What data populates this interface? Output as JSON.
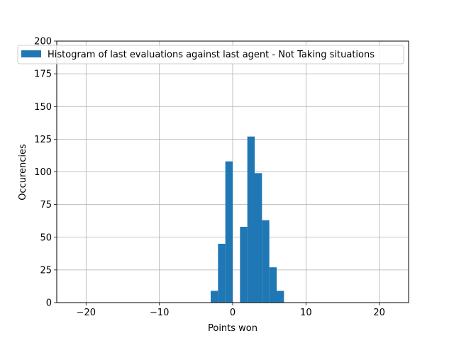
{
  "chart_data": {
    "type": "bar",
    "histogram": true,
    "xlabel": "Points won",
    "ylabel": "Occurencies",
    "xlim": [
      -24,
      24
    ],
    "ylim": [
      0,
      200
    ],
    "xticks": [
      "−20",
      "−10",
      "0",
      "10",
      "20"
    ],
    "xtick_values": [
      -20,
      -10,
      0,
      10,
      20
    ],
    "yticks": [
      "0",
      "25",
      "50",
      "75",
      "100",
      "125",
      "150",
      "175",
      "200"
    ],
    "ytick_values": [
      0,
      25,
      50,
      75,
      100,
      125,
      150,
      175,
      200
    ],
    "grid": true,
    "legend_position": "top-center",
    "series": [
      {
        "name": "Histogram of last evaluations against last agent - Not Taking situations",
        "color": "#1f77b4",
        "bins": [
          {
            "x0": -3,
            "x1": -2,
            "value": 9
          },
          {
            "x0": -2,
            "x1": -1,
            "value": 45
          },
          {
            "x0": -1,
            "x1": 0,
            "value": 108
          },
          {
            "x0": 1,
            "x1": 2,
            "value": 58
          },
          {
            "x0": 2,
            "x1": 3,
            "value": 127
          },
          {
            "x0": 3,
            "x1": 4,
            "value": 99
          },
          {
            "x0": 4,
            "x1": 5,
            "value": 63
          },
          {
            "x0": 5,
            "x1": 6,
            "value": 27
          },
          {
            "x0": 6,
            "x1": 7,
            "value": 9
          }
        ]
      }
    ]
  }
}
